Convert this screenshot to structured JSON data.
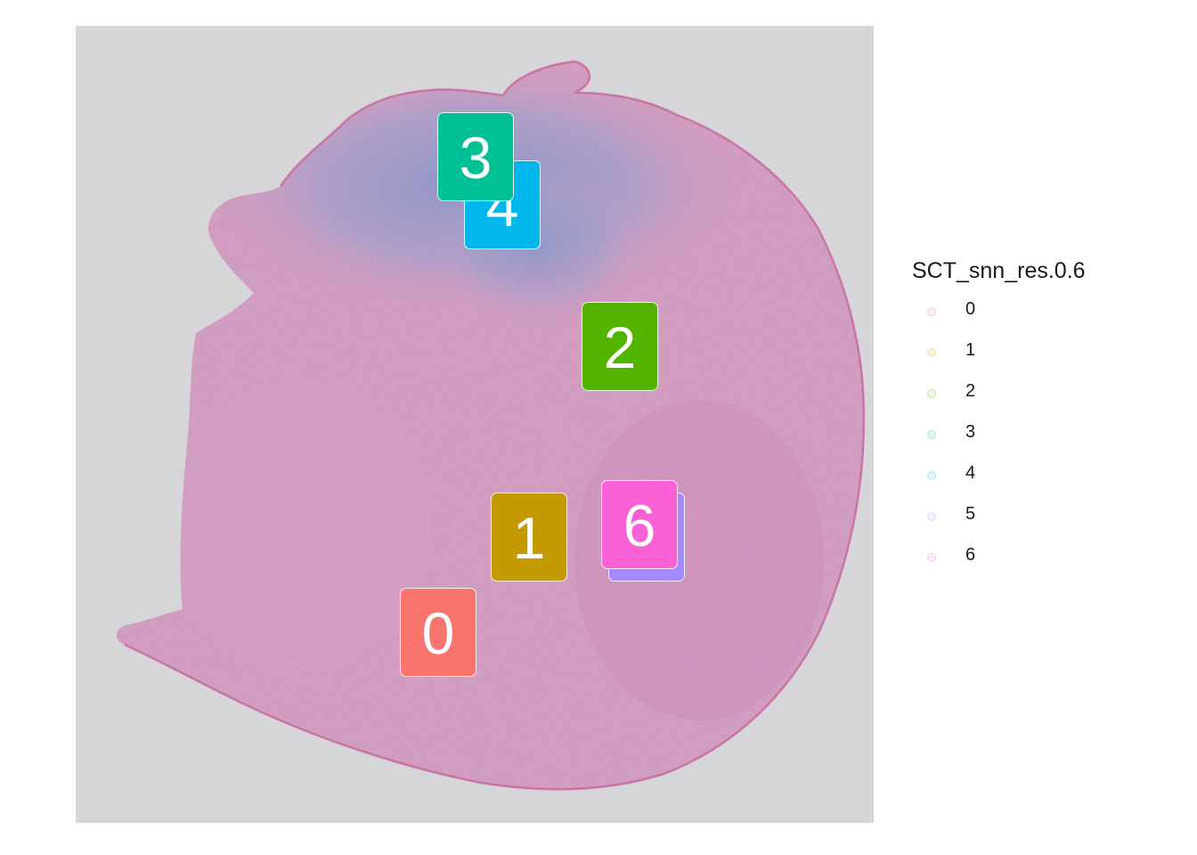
{
  "legend": {
    "title": "SCT_snn_res.0.6",
    "items": [
      {
        "label": "0",
        "color": "#F8766D"
      },
      {
        "label": "1",
        "color": "#C49A00"
      },
      {
        "label": "2",
        "color": "#53B400"
      },
      {
        "label": "3",
        "color": "#00C094"
      },
      {
        "label": "4",
        "color": "#00B6EB"
      },
      {
        "label": "5",
        "color": "#A58AFF"
      },
      {
        "label": "6",
        "color": "#FB61D7"
      }
    ]
  },
  "cluster_labels": [
    {
      "label": "5",
      "color": "#A58AFF"
    },
    {
      "label": "4",
      "color": "#00B6EB"
    },
    {
      "label": "3",
      "color": "#00C094"
    },
    {
      "label": "2",
      "color": "#53B400"
    },
    {
      "label": "1",
      "color": "#C49A00"
    },
    {
      "label": "6",
      "color": "#FB61D7"
    },
    {
      "label": "0",
      "color": "#F8766D"
    }
  ],
  "image": {
    "tissue_color": "#d9a3c8",
    "tissue_edge_color": "#c45a95",
    "blue_region_color": "#8f9bcf",
    "background_color": "#d6d5d8"
  }
}
